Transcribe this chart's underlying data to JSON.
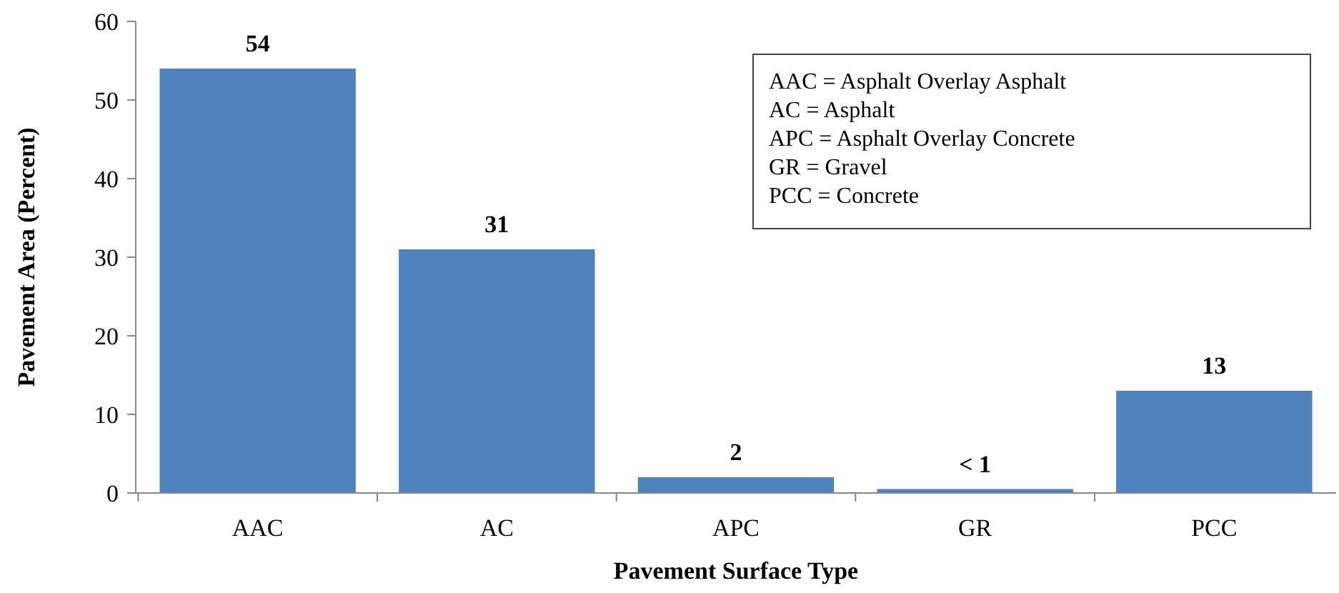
{
  "chart_data": {
    "type": "bar",
    "xlabel": "Pavement Surface Type",
    "ylabel": "Pavement Area (Percent)",
    "categories": [
      "AAC",
      "AC",
      "APC",
      "GR",
      "PCC"
    ],
    "values": [
      54,
      31,
      2,
      0.5,
      13
    ],
    "value_labels": [
      "54",
      "31",
      "2",
      "< 1",
      "13"
    ],
    "color": "#4f81bd",
    "ylim": [
      0,
      60
    ],
    "yticks": [
      0,
      10,
      20,
      30,
      40,
      50,
      60
    ],
    "grid": false,
    "annotations": [
      "AAC = Asphalt Overlay Asphalt",
      "AC = Asphalt",
      "APC = Asphalt Overlay Concrete",
      "GR = Gravel",
      "PCC = Concrete"
    ]
  }
}
